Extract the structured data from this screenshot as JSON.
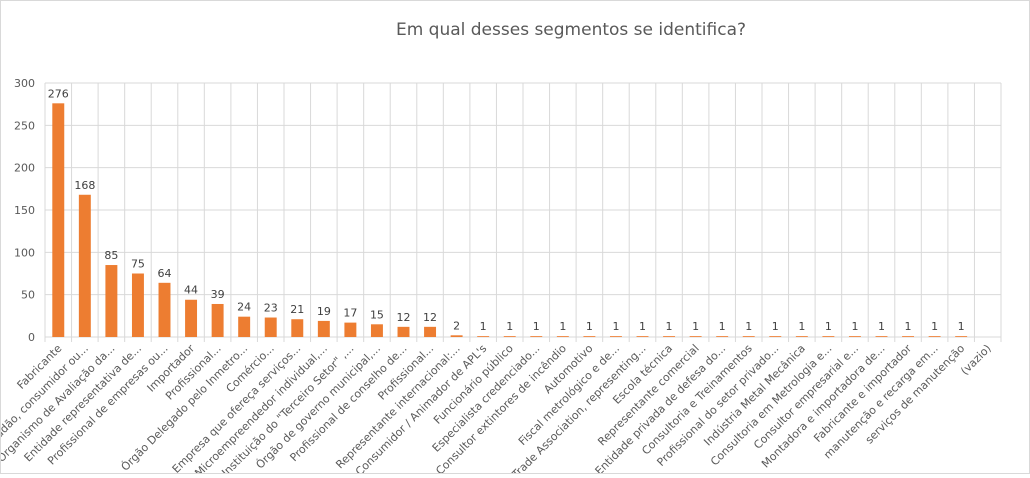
{
  "chart_data": {
    "type": "bar",
    "title": "Em qual desses segmentos se identifica?",
    "xlabel": "",
    "ylabel": "",
    "ylim": [
      0,
      300
    ],
    "yticks": [
      0,
      50,
      100,
      150,
      200,
      250,
      300
    ],
    "grid": true,
    "bar_color": "#ED7D31",
    "categories": [
      "Fabricante",
      "Cidadão, consumidor ou...",
      "Organismo de Avaliação da...",
      "Entidade representativa de...",
      "Profissional de empresas ou...",
      "Importador",
      "Profissional...",
      "Órgão Delegado pelo Inmetro...",
      "Comércio...",
      "Empresa que ofereça serviços...",
      "Microempreendedor individual,...",
      "Instituição do \"Terceiro Setor\" ,...",
      "Órgão de governo municipal,...",
      "Profissional de conselho de...",
      "Profissional...",
      "Representante internacional:...",
      "Consumidor / Animador de APL's",
      "Funcionário público",
      "Especialista credenciado...",
      "Consultor extintores de incêndio",
      "Automotivo",
      "Fiscal metrológico e de...",
      "Trade Association, representing...",
      "Escola técnica",
      "Representante comercial",
      "Entidade privada de defesa do...",
      "Consultoria e Treinamentos",
      "Profissional do setor privado...",
      "Indústria Metal Mecânica",
      "Consultoria em Metrologia e...",
      "Consultor empresarial e...",
      "Montadora e importadora de...",
      "Fabricante e importador",
      "manutenção e recarga em...",
      "serviços de manutenção",
      "(vazio)"
    ],
    "values": [
      276,
      168,
      85,
      75,
      64,
      44,
      39,
      24,
      23,
      21,
      19,
      17,
      15,
      12,
      12,
      2,
      1,
      1,
      1,
      1,
      1,
      1,
      1,
      1,
      1,
      1,
      1,
      1,
      1,
      1,
      1,
      1,
      1,
      1,
      1,
      null
    ]
  }
}
